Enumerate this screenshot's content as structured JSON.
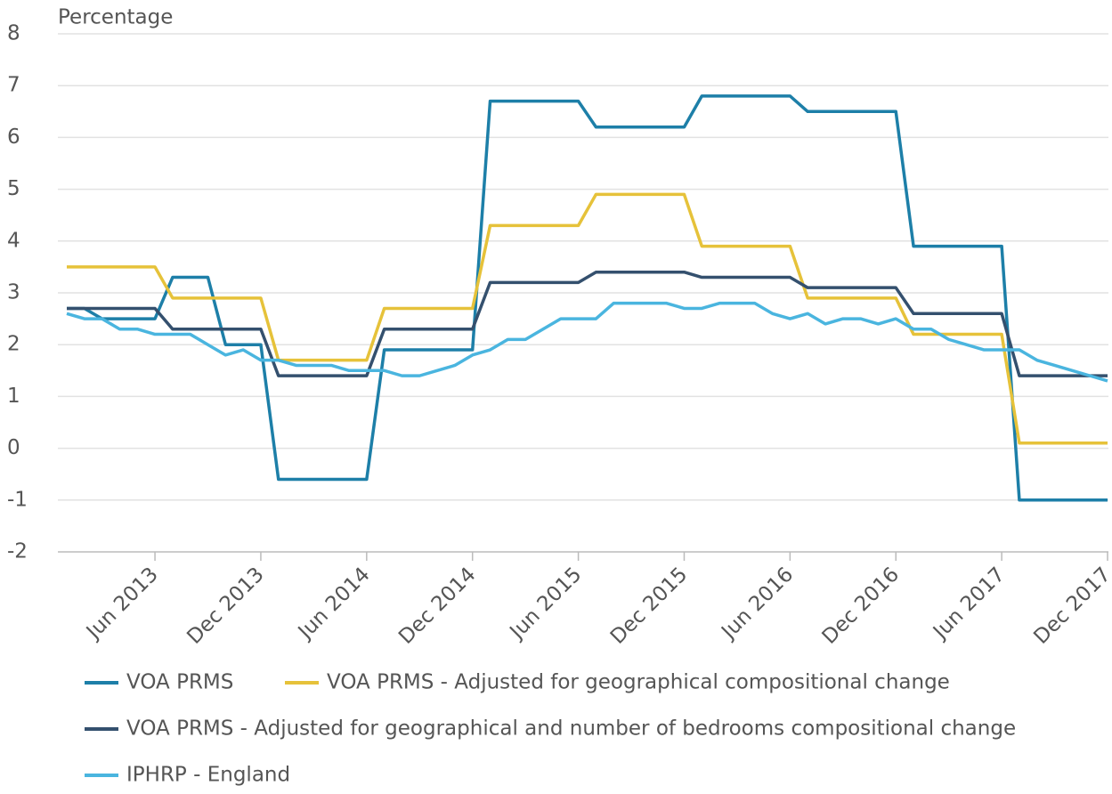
{
  "chart_data": {
    "type": "line",
    "y_label": "Percentage",
    "categories": [
      null,
      null,
      null,
      null,
      null,
      "Jun 2013",
      null,
      null,
      null,
      null,
      null,
      "Dec 2013",
      null,
      null,
      null,
      null,
      null,
      "Jun 2014",
      null,
      null,
      null,
      null,
      null,
      "Dec 2014",
      null,
      null,
      null,
      null,
      null,
      "Jun 2015",
      null,
      null,
      null,
      null,
      null,
      "Dec 2015",
      null,
      null,
      null,
      null,
      null,
      "Jun 2016",
      null,
      null,
      null,
      null,
      null,
      "Dec 2016",
      null,
      null,
      null,
      null,
      null,
      "Jun 2017",
      null,
      null,
      null,
      null,
      null,
      "Dec 2017"
    ],
    "series": [
      {
        "name": "VOA PRMS",
        "color": "#1d7fa8",
        "values": [
          2.7,
          2.7,
          2.5,
          2.5,
          2.5,
          2.5,
          3.3,
          3.3,
          3.3,
          2.0,
          2.0,
          2.0,
          -0.6,
          -0.6,
          -0.6,
          -0.6,
          -0.6,
          -0.6,
          1.9,
          1.9,
          1.9,
          1.9,
          1.9,
          1.9,
          6.7,
          6.7,
          6.7,
          6.7,
          6.7,
          6.7,
          6.2,
          6.2,
          6.2,
          6.2,
          6.2,
          6.2,
          6.8,
          6.8,
          6.8,
          6.8,
          6.8,
          6.8,
          6.5,
          6.5,
          6.5,
          6.5,
          6.5,
          6.5,
          3.9,
          3.9,
          3.9,
          3.9,
          3.9,
          3.9,
          -1.0,
          -1.0,
          -1.0,
          -1.0,
          -1.0,
          -1.0
        ]
      },
      {
        "name": "VOA PRMS - Adjusted for geographical compositional change",
        "color": "#e6c23a",
        "values": [
          3.5,
          3.5,
          3.5,
          3.5,
          3.5,
          3.5,
          2.9,
          2.9,
          2.9,
          2.9,
          2.9,
          2.9,
          1.7,
          1.7,
          1.7,
          1.7,
          1.7,
          1.7,
          2.7,
          2.7,
          2.7,
          2.7,
          2.7,
          2.7,
          4.3,
          4.3,
          4.3,
          4.3,
          4.3,
          4.3,
          4.9,
          4.9,
          4.9,
          4.9,
          4.9,
          4.9,
          3.9,
          3.9,
          3.9,
          3.9,
          3.9,
          3.9,
          2.9,
          2.9,
          2.9,
          2.9,
          2.9,
          2.9,
          2.2,
          2.2,
          2.2,
          2.2,
          2.2,
          2.2,
          0.1,
          0.1,
          0.1,
          0.1,
          0.1,
          0.1
        ]
      },
      {
        "name": "VOA PRMS - Adjusted for geographical and number of bedrooms compositional change",
        "color": "#34506e",
        "values": [
          2.7,
          2.7,
          2.7,
          2.7,
          2.7,
          2.7,
          2.3,
          2.3,
          2.3,
          2.3,
          2.3,
          2.3,
          1.4,
          1.4,
          1.4,
          1.4,
          1.4,
          1.4,
          2.3,
          2.3,
          2.3,
          2.3,
          2.3,
          2.3,
          3.2,
          3.2,
          3.2,
          3.2,
          3.2,
          3.2,
          3.4,
          3.4,
          3.4,
          3.4,
          3.4,
          3.4,
          3.3,
          3.3,
          3.3,
          3.3,
          3.3,
          3.3,
          3.1,
          3.1,
          3.1,
          3.1,
          3.1,
          3.1,
          2.6,
          2.6,
          2.6,
          2.6,
          2.6,
          2.6,
          1.4,
          1.4,
          1.4,
          1.4,
          1.4,
          1.4
        ]
      },
      {
        "name": "IPHRP - England",
        "color": "#4ab5df",
        "values": [
          2.6,
          2.5,
          2.5,
          2.3,
          2.3,
          2.2,
          2.2,
          2.2,
          2.0,
          1.8,
          1.9,
          1.7,
          1.7,
          1.6,
          1.6,
          1.6,
          1.5,
          1.5,
          1.5,
          1.4,
          1.4,
          1.5,
          1.6,
          1.8,
          1.9,
          2.1,
          2.1,
          2.3,
          2.5,
          2.5,
          2.5,
          2.8,
          2.8,
          2.8,
          2.8,
          2.7,
          2.7,
          2.8,
          2.8,
          2.8,
          2.6,
          2.5,
          2.6,
          2.4,
          2.5,
          2.5,
          2.4,
          2.5,
          2.3,
          2.3,
          2.1,
          2.0,
          1.9,
          1.9,
          1.9,
          1.7,
          1.6,
          1.5,
          1.4,
          1.3
        ]
      }
    ],
    "ylim": [
      -2,
      8
    ],
    "yticks": [
      -2,
      -1,
      0,
      1,
      2,
      3,
      4,
      5,
      6,
      7,
      8
    ],
    "grid": true
  }
}
